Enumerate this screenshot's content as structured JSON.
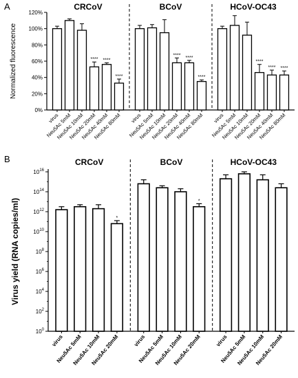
{
  "chart_data": [
    {
      "panel_label": "A",
      "type": "bar",
      "ylabel": "Normalized fluorescence",
      "ylim": [
        0,
        120
      ],
      "yticks": [
        "0%",
        "20%",
        "40%",
        "60%",
        "80%",
        "100%",
        "120%"
      ],
      "groups": [
        {
          "title": "CRCoV",
          "categories": [
            "virus",
            "Neu5Ac 5mM",
            "Neu5Ac 10mM",
            "Neu5Ac 20mM",
            "Neu5Ac 40mM",
            "Neu5Ac 80mM"
          ],
          "values": [
            100,
            110,
            98,
            53,
            56,
            33
          ],
          "errors": [
            3,
            2,
            8,
            6,
            2,
            5
          ],
          "significance": [
            "",
            "",
            "",
            "****",
            "****",
            "****"
          ]
        },
        {
          "title": "BCoV",
          "categories": [
            "virus",
            "Neu5Ac 5mM",
            "Neu5Ac 10mM",
            "Neu5Ac 20mM",
            "Neu5Ac 40mM",
            "Neu5Ac 80mM"
          ],
          "values": [
            100,
            101,
            95,
            58,
            58,
            35
          ],
          "errors": [
            4,
            4,
            16,
            6,
            3,
            2
          ],
          "significance": [
            "",
            "",
            "",
            "****",
            "****",
            "****"
          ]
        },
        {
          "title": "HCoV-OC43",
          "categories": [
            "virus",
            "Neu5Ac 5mM",
            "Neu5Ac 10mM",
            "Neu5Ac 20mM",
            "Neu5Ac 40mM",
            "Neu5Ac 80mM"
          ],
          "values": [
            100,
            104,
            92,
            46,
            43,
            43
          ],
          "errors": [
            3,
            12,
            16,
            10,
            6,
            5
          ],
          "significance": [
            "",
            "",
            "",
            "****",
            "****",
            "****"
          ]
        }
      ]
    },
    {
      "panel_label": "B",
      "type": "bar",
      "ylabel": "Virus yield (RNA copies/ml)",
      "yscale": "log",
      "ylim_exponent": [
        0,
        16
      ],
      "ytick_base": "10",
      "ytick_exponents": [
        "0",
        "2",
        "4",
        "6",
        "8",
        "10",
        "12",
        "14",
        "16"
      ],
      "groups": [
        {
          "title": "CRCoV",
          "categories": [
            "virus",
            "Neu5Ac 5mM",
            "Neu5Ac 10mM",
            "Neu5Ac 20mM"
          ],
          "log10_values": [
            12.2,
            12.5,
            12.3,
            10.8
          ],
          "log10_errors": [
            0.3,
            0.2,
            0.4,
            0.3
          ],
          "significance": [
            "",
            "",
            "",
            "*"
          ]
        },
        {
          "title": "BCoV",
          "categories": [
            "virus",
            "Neu5Ac 5mM",
            "Neu5Ac 10mM",
            "Neu5Ac 20mM"
          ],
          "log10_values": [
            14.8,
            14.4,
            14.0,
            12.5
          ],
          "log10_errors": [
            0.4,
            0.2,
            0.3,
            0.3
          ],
          "significance": [
            "",
            "",
            "",
            "*"
          ]
        },
        {
          "title": "HCoV-OC43",
          "categories": [
            "virus",
            "Neu5Ac 5mM",
            "Neu5Ac 10mM",
            "Neu5Ac 20mM"
          ],
          "log10_values": [
            15.3,
            15.8,
            15.2,
            14.4
          ],
          "log10_errors": [
            0.4,
            0.2,
            0.5,
            0.4
          ],
          "significance": [
            "",
            "",
            "",
            ""
          ]
        }
      ]
    }
  ]
}
